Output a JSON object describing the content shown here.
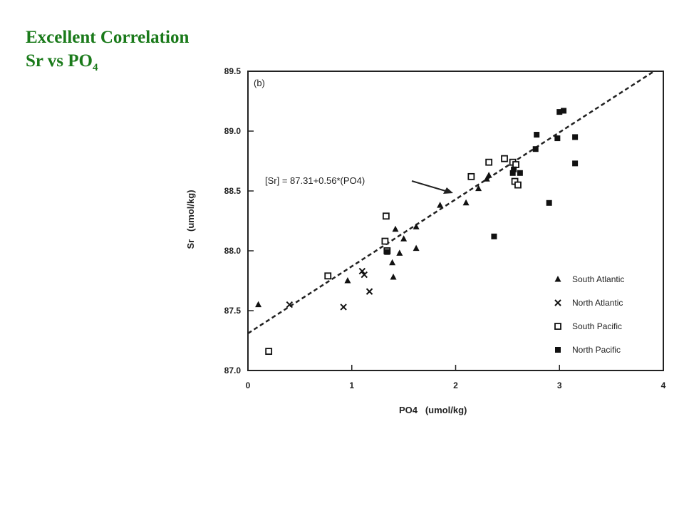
{
  "slide": {
    "title_line1": "Excellent Correlation",
    "title_line2": "Sr vs PO",
    "title_sub": "4"
  },
  "chart_data": {
    "type": "scatter",
    "panel_label": "(b)",
    "xlabel": "PO4   (umol/kg)",
    "ylabel": "Sr   (umol/kg)",
    "xlim": [
      0,
      4
    ],
    "ylim": [
      87.0,
      89.5
    ],
    "xticks": [
      "0",
      "1",
      "2",
      "3",
      "4"
    ],
    "yticks": [
      "87.0",
      "87.5",
      "88.0",
      "88.5",
      "89.0",
      "89.5"
    ],
    "fit": {
      "label": "[Sr]  =  87.31+0.56*(PO4)",
      "intercept": 87.31,
      "slope": 0.56,
      "style": "dashed"
    },
    "legend_position": "bottom-right",
    "series": [
      {
        "name": "South Atlantic",
        "marker": "triangle",
        "points": [
          [
            0.1,
            87.55
          ],
          [
            0.96,
            87.75
          ],
          [
            1.39,
            87.9
          ],
          [
            1.42,
            88.18
          ],
          [
            1.4,
            87.78
          ],
          [
            1.46,
            87.98
          ],
          [
            1.5,
            88.1
          ],
          [
            1.62,
            88.2
          ],
          [
            1.62,
            88.02
          ],
          [
            1.85,
            88.38
          ],
          [
            2.1,
            88.4
          ],
          [
            2.22,
            88.52
          ],
          [
            2.3,
            88.6
          ],
          [
            2.32,
            88.63
          ]
        ]
      },
      {
        "name": "North Atlantic",
        "marker": "x",
        "points": [
          [
            0.4,
            87.55
          ],
          [
            0.92,
            87.53
          ],
          [
            1.1,
            87.83
          ],
          [
            1.12,
            87.8
          ],
          [
            1.17,
            87.66
          ]
        ]
      },
      {
        "name": "South Pacific",
        "marker": "open-square",
        "points": [
          [
            0.2,
            87.16
          ],
          [
            0.77,
            87.79
          ],
          [
            1.32,
            88.08
          ],
          [
            1.33,
            88.29
          ],
          [
            1.34,
            88.0
          ],
          [
            2.15,
            88.62
          ],
          [
            2.32,
            88.74
          ],
          [
            2.47,
            88.77
          ],
          [
            2.55,
            88.74
          ],
          [
            2.58,
            88.72
          ],
          [
            2.57,
            88.58
          ],
          [
            2.6,
            88.55
          ]
        ]
      },
      {
        "name": "North Pacific",
        "marker": "filled-square",
        "points": [
          [
            1.34,
            87.99
          ],
          [
            2.37,
            88.12
          ],
          [
            2.55,
            88.65
          ],
          [
            2.56,
            88.68
          ],
          [
            2.62,
            88.65
          ],
          [
            2.77,
            88.85
          ],
          [
            2.78,
            88.97
          ],
          [
            2.9,
            88.4
          ],
          [
            2.98,
            88.94
          ],
          [
            3.0,
            89.16
          ],
          [
            3.04,
            89.17
          ],
          [
            3.15,
            88.73
          ],
          [
            3.15,
            88.95
          ]
        ]
      }
    ]
  }
}
